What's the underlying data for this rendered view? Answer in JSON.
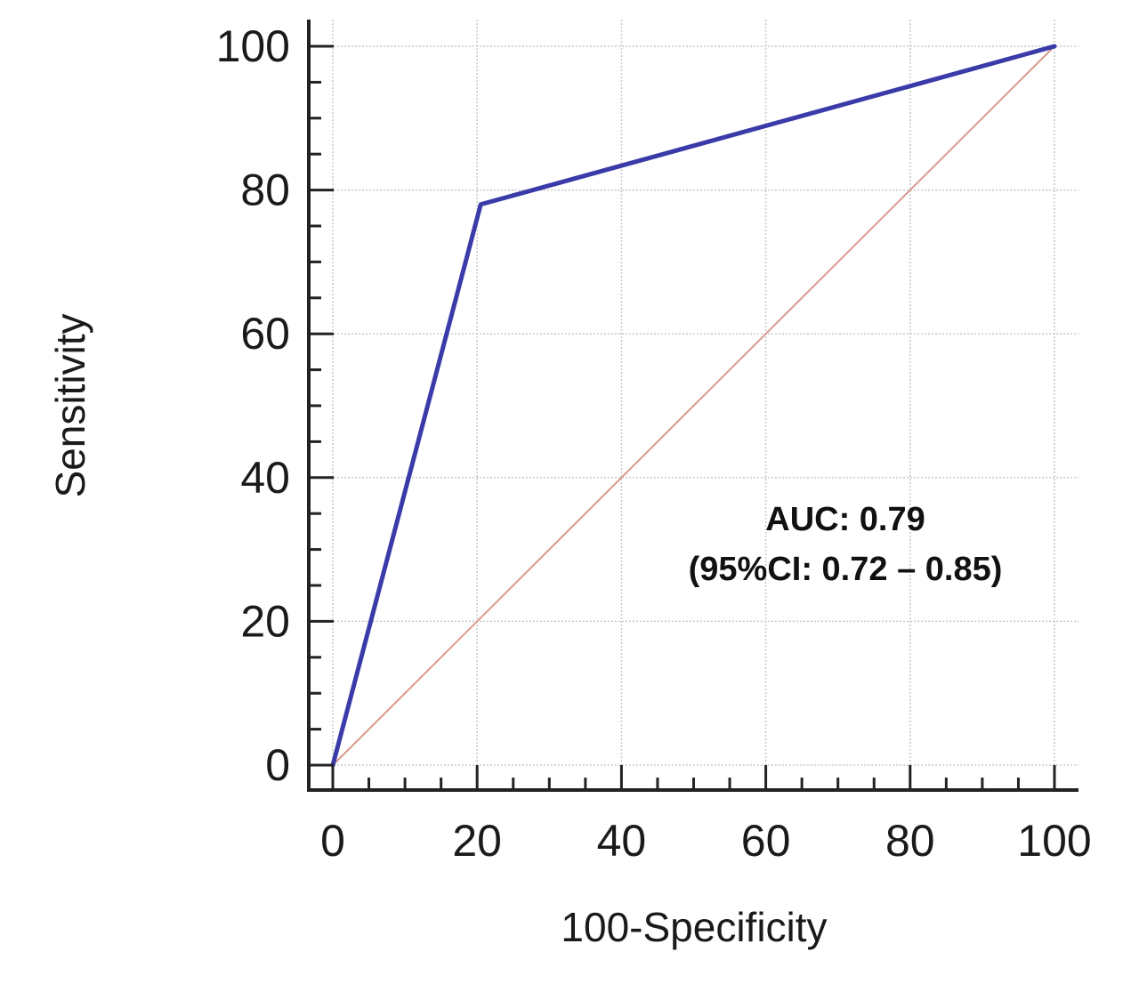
{
  "chart_data": {
    "type": "line",
    "xlabel": "100-Specificity",
    "ylabel": "Sensitivity",
    "xlim": [
      0,
      100
    ],
    "ylim": [
      0,
      100
    ],
    "x_ticks": [
      0,
      20,
      40,
      60,
      80,
      100
    ],
    "y_ticks": [
      0,
      20,
      40,
      60,
      80,
      100
    ],
    "x_tick_labels": [
      "0",
      "20",
      "40",
      "60",
      "80",
      "100"
    ],
    "y_tick_labels": [
      "0",
      "20",
      "40",
      "60",
      "80",
      "100"
    ],
    "grid": true,
    "series": [
      {
        "x": [
          0,
          20.5,
          100
        ],
        "y": [
          0,
          78,
          100
        ],
        "color": "#3a3aa8"
      },
      {
        "x": [
          0,
          100
        ],
        "y": [
          0,
          100
        ],
        "color": "#d99a8f"
      }
    ],
    "annotations": {
      "auc": "AUC: 0.79",
      "ci": "(95%CI: 0.72 – 0.85)"
    }
  }
}
